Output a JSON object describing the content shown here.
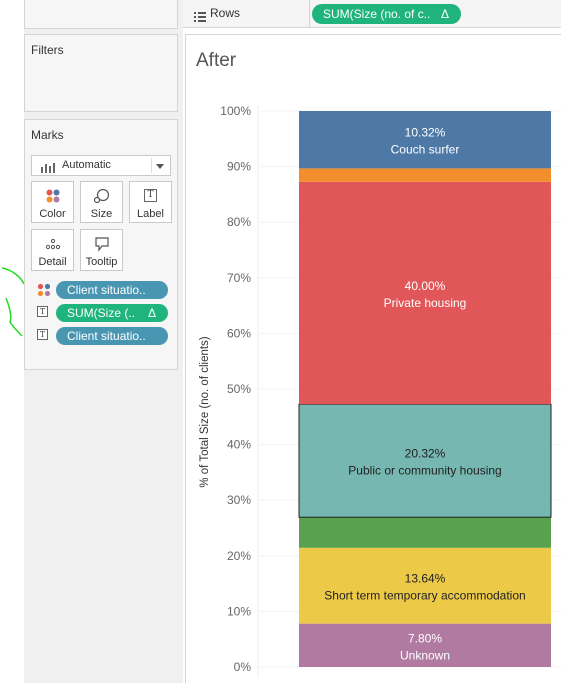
{
  "sidebar": {
    "filters_title": "Filters",
    "marks_title": "Marks",
    "mark_type": "Automatic",
    "buttons": {
      "color": "Color",
      "size": "Size",
      "label": "Label",
      "detail": "Detail",
      "tooltip": "Tooltip"
    },
    "pills": [
      {
        "icon": "color-dots-icon",
        "label": "Client situatio.."
      },
      {
        "icon": "text-label-icon",
        "label": "SUM(Size (.. ",
        "delta": "Δ"
      },
      {
        "icon": "text-label-icon",
        "label": "Client situatio.."
      }
    ]
  },
  "shelf": {
    "rows_label": "Rows",
    "rows_pill": "SUM(Size (no. of c..",
    "rows_pill_delta": "Δ"
  },
  "sheet": {
    "title": "After"
  },
  "colors": {
    "couch_surfer": "#4e79a7",
    "orange": "#f28e2b",
    "private_housing": "#e15759",
    "public_housing": "#76b7b2",
    "green": "#59a14f",
    "short_term": "#edc948",
    "unknown": "#b07aa1",
    "pill_green": "#1fb37d",
    "pill_blue": "#4996b2"
  },
  "chart_data": {
    "type": "bar",
    "stacked": true,
    "ylabel": "% of Total Size (no. of clients)",
    "yticks": [
      "0%",
      "10%",
      "20%",
      "30%",
      "40%",
      "50%",
      "60%",
      "70%",
      "80%",
      "90%",
      "100%"
    ],
    "ylim": [
      0,
      100
    ],
    "series": [
      {
        "label": "Unknown",
        "value_label": "7.80%",
        "value": 7.8,
        "color": "#b07aa1",
        "text": "light"
      },
      {
        "label": "Short term temporary accommodation",
        "value_label": "13.64%",
        "value": 13.64,
        "color": "#edc948",
        "text": "dark"
      },
      {
        "label": "",
        "value_label": "",
        "value": 5.5,
        "color": "#59a14f",
        "text": "none"
      },
      {
        "label": "Public or community housing",
        "value_label": "20.32%",
        "value": 20.32,
        "color": "#76b7b2",
        "text": "dark",
        "highlight": true
      },
      {
        "label": "Private housing",
        "value_label": "40.00%",
        "value": 40.0,
        "color": "#e15759",
        "text": "light"
      },
      {
        "label": "",
        "value_label": "",
        "value": 2.42,
        "color": "#f28e2b",
        "text": "none"
      },
      {
        "label": "Couch surfer",
        "value_label": "10.32%",
        "value": 10.32,
        "color": "#4e79a7",
        "text": "light"
      }
    ]
  }
}
